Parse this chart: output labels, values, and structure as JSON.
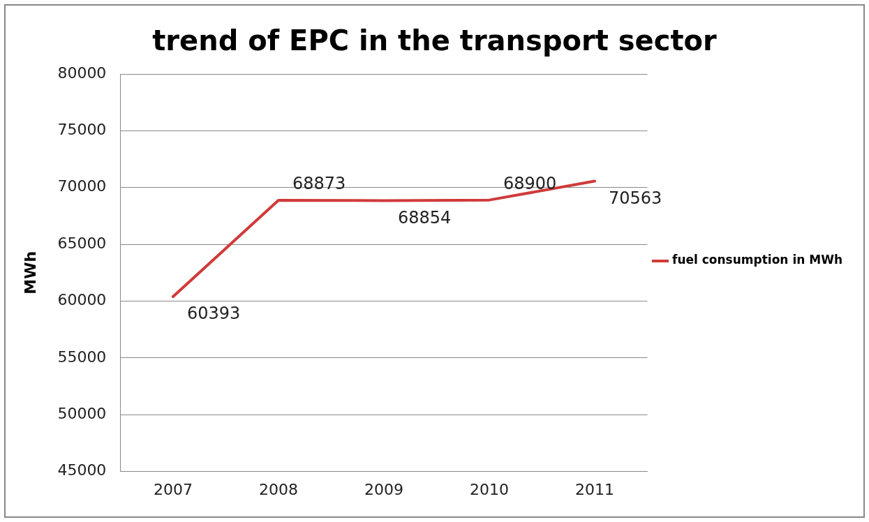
{
  "chart_data": {
    "type": "line",
    "title": "trend of EPC in the transport sector",
    "ylabel": "MWh",
    "categories": [
      "2007",
      "2008",
      "2009",
      "2010",
      "2011"
    ],
    "series": [
      {
        "name": "fuel consumption in MWh",
        "color": "#d03a3a",
        "values": [
          60393,
          68873,
          68854,
          68900,
          70563
        ]
      }
    ],
    "ylim": [
      45000,
      80000
    ],
    "yticks": [
      45000,
      50000,
      55000,
      60000,
      65000,
      70000,
      75000,
      80000
    ],
    "grid": "y",
    "legend": "right",
    "marker": "none",
    "line_style": "solid",
    "data_labels": true
  }
}
